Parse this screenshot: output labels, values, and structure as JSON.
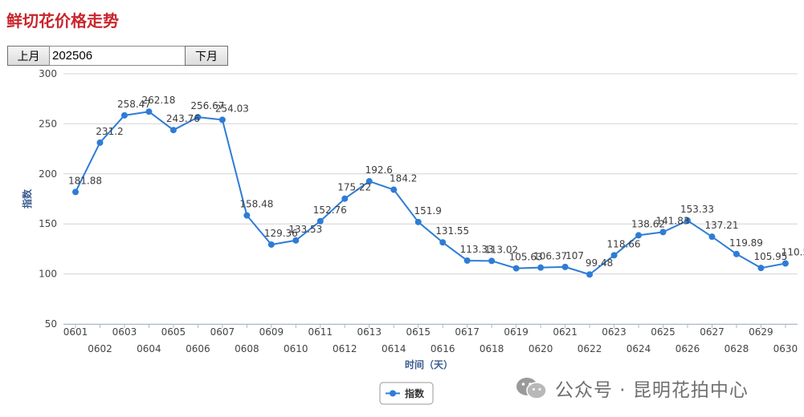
{
  "page": {
    "title": "鲜切花价格走势"
  },
  "controls": {
    "prev_label": "上月",
    "month_value": "202506",
    "next_label": "下月"
  },
  "watermark": {
    "text": "公众号 · 昆明花拍中心",
    "icon": "wechat-icon"
  },
  "colors": {
    "title": "#c9252c",
    "series": "#2e7cd6",
    "grid": "#d4d4d4",
    "axis_label": "#3a5b8f"
  },
  "chart_data": {
    "type": "line",
    "xlabel": "时间（天）",
    "ylabel": "指数",
    "ylim": [
      50,
      300
    ],
    "yticks": [
      50,
      100,
      150,
      200,
      250,
      300
    ],
    "grid": true,
    "legend_position": "bottom-center",
    "x": [
      "0601",
      "0602",
      "0603",
      "0604",
      "0605",
      "0606",
      "0607",
      "0608",
      "0609",
      "0610",
      "0611",
      "0612",
      "0613",
      "0614",
      "0615",
      "0616",
      "0617",
      "0618",
      "0619",
      "0620",
      "0621",
      "0622",
      "0623",
      "0624",
      "0625",
      "0626",
      "0627",
      "0628",
      "0629",
      "0630"
    ],
    "series": [
      {
        "name": "指数",
        "values": [
          181.88,
          231.2,
          258.47,
          262.18,
          243.76,
          256.67,
          254.03,
          158.48,
          129.36,
          133.53,
          152.76,
          175.22,
          192.6,
          184.2,
          151.9,
          131.55,
          113.33,
          113.02,
          105.63,
          106.37,
          107,
          99.48,
          118.66,
          138.62,
          141.83,
          153.33,
          137.21,
          119.89,
          105.95,
          110.5
        ],
        "labels": [
          "181.88",
          "231.2",
          "258.47",
          "262.18",
          "243.76",
          "256.67",
          "254.03",
          "158.48",
          "129.36",
          "133.53",
          "152.76",
          "175.22",
          "192.6",
          "184.2",
          "151.9",
          "131.55",
          "113.33",
          "113.02",
          "105.63",
          "106.37",
          "107",
          "99.48",
          "118.66",
          "138.62",
          "141.83",
          "153.33",
          "137.21",
          "119.89",
          "105.95",
          "110.5"
        ]
      }
    ]
  }
}
